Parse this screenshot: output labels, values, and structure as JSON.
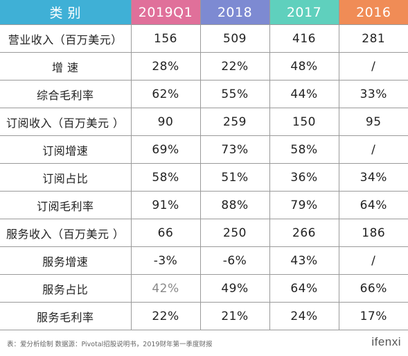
{
  "table": {
    "headers": [
      "类 别",
      "2019Q1",
      "2018",
      "2017",
      "2016"
    ],
    "rows": [
      [
        "营业收入（百万美元）",
        "156",
        "509",
        "416",
        "281"
      ],
      [
        "增 速",
        "28%",
        "22%",
        "48%",
        "/"
      ],
      [
        "综合毛利率",
        "62%",
        "55%",
        "44%",
        "33%"
      ],
      [
        "订阅收入（百万美元 ）",
        "90",
        "259",
        "150",
        "95"
      ],
      [
        "订阅增速",
        "69%",
        "73%",
        "58%",
        "/"
      ],
      [
        "订阅占比",
        "58%",
        "51%",
        "36%",
        "34%"
      ],
      [
        "订阅毛利率",
        "91%",
        "88%",
        "79%",
        "64%"
      ],
      [
        "服务收入（百万美元 ）",
        "66",
        "250",
        "266",
        "186"
      ],
      [
        "服务增速",
        "-3%",
        "-6%",
        "43%",
        "/"
      ],
      [
        "服务占比",
        "42%",
        "49%",
        "64%",
        "66%"
      ],
      [
        "服务毛利率",
        "22%",
        "21%",
        "24%",
        "17%"
      ]
    ]
  },
  "header_colors": [
    "#3fb0d6",
    "#e0709a",
    "#7d8ad2",
    "#5fd0bd",
    "#f08c56"
  ],
  "footer": {
    "source": "表：爱分析绘制     数据源：Pivotal招股说明书，2019财年第一季度财报",
    "logo": "ifenxi"
  }
}
